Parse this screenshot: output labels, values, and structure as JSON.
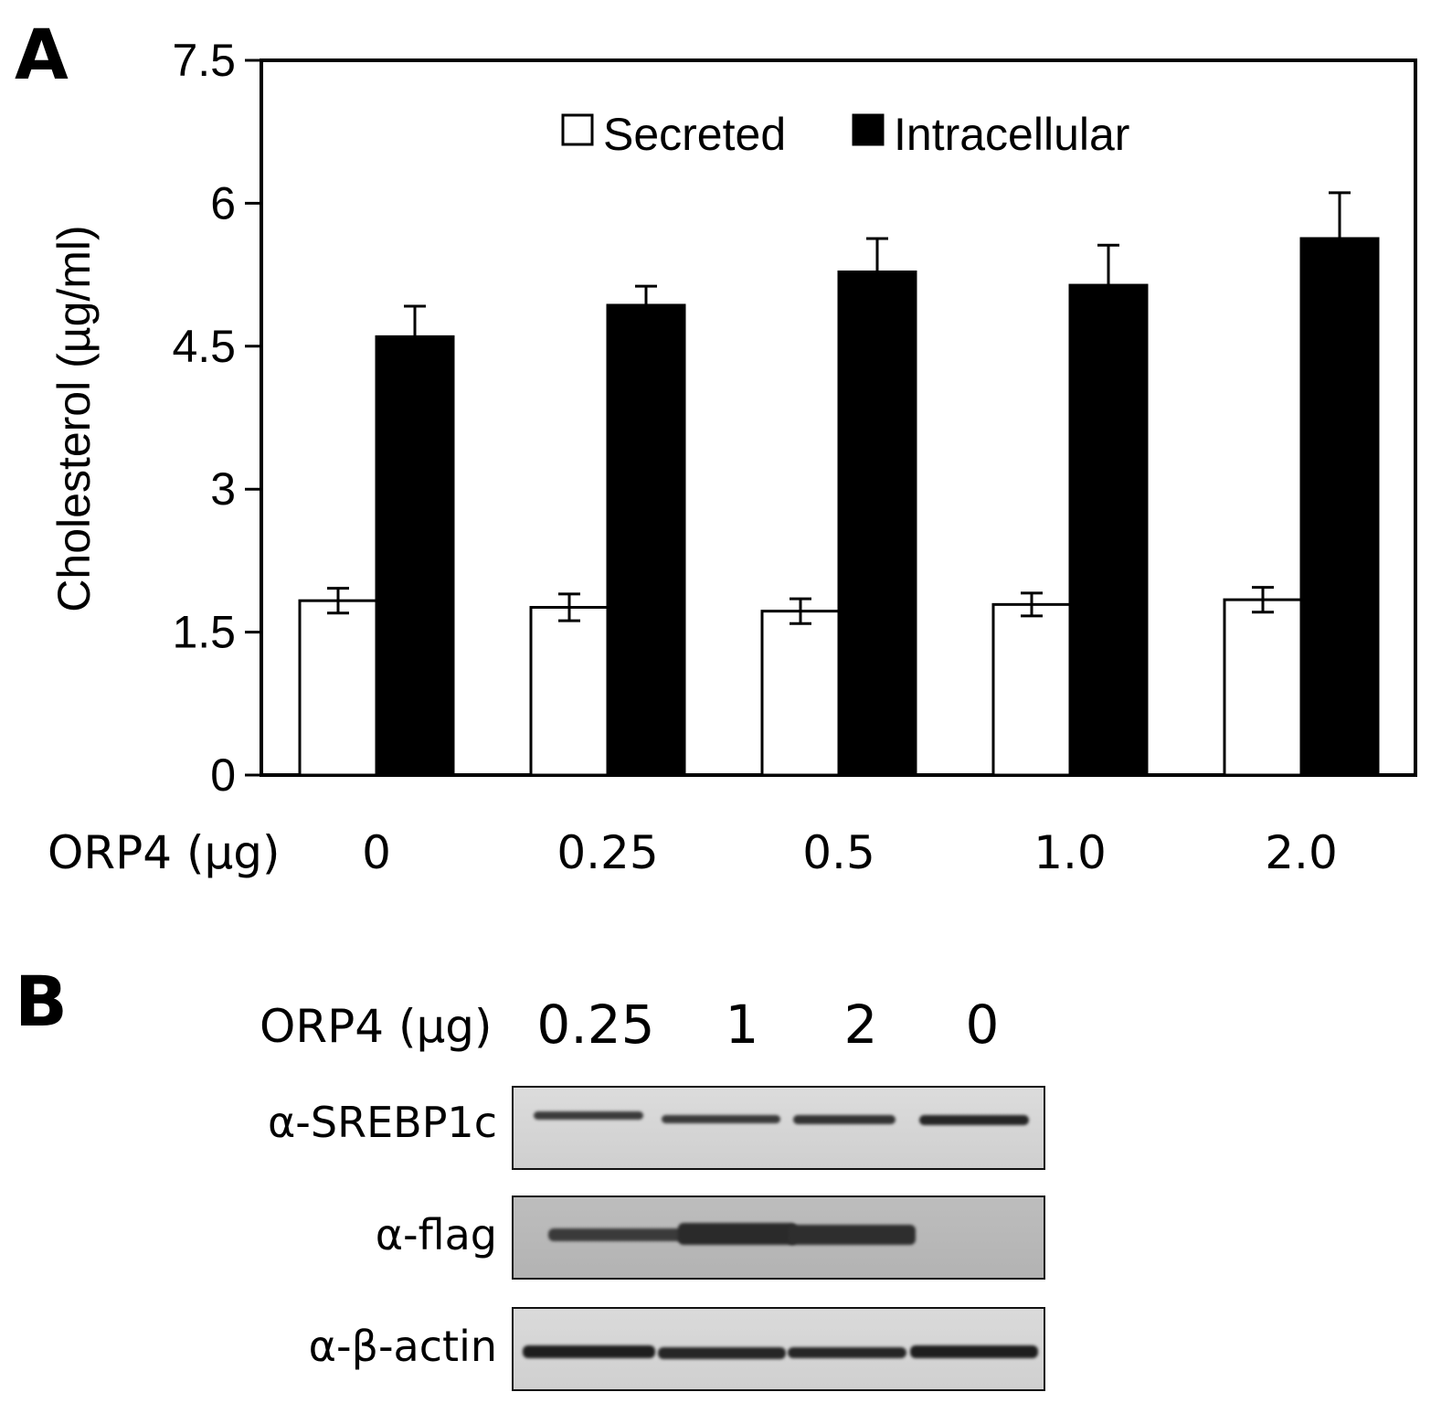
{
  "panel_a": {
    "letter": "A",
    "chart_data": {
      "type": "bar",
      "categories": [
        "0",
        "0.25",
        "0.5",
        "1.0",
        "2.0"
      ],
      "series": [
        {
          "name": "Secreted",
          "color": "#ffffff",
          "values": [
            1.83,
            1.76,
            1.72,
            1.79,
            1.84
          ],
          "errors": [
            0.13,
            0.14,
            0.13,
            0.12,
            0.13
          ]
        },
        {
          "name": "Intracellular",
          "color": "#000000",
          "values": [
            4.6,
            4.93,
            5.28,
            5.14,
            5.63
          ],
          "errors": [
            0.32,
            0.2,
            0.35,
            0.42,
            0.48
          ]
        }
      ],
      "ylabel": "Cholesterol (µg/ml)",
      "xlabel": "ORP4 (µg)",
      "ylim": [
        0,
        7.5
      ],
      "yticks": [
        "0",
        "1.5",
        "3",
        "4.5",
        "6",
        "7.5"
      ],
      "legend_position": "top-center",
      "grid": false
    }
  },
  "panel_b": {
    "letter": "B",
    "header_label": "ORP4 (µg)",
    "lanes": [
      "0.25",
      "1",
      "2",
      "0"
    ],
    "blots": [
      {
        "label": "α-SREBP1c"
      },
      {
        "label": "α-flag"
      },
      {
        "label": "α-β-actin"
      }
    ]
  }
}
